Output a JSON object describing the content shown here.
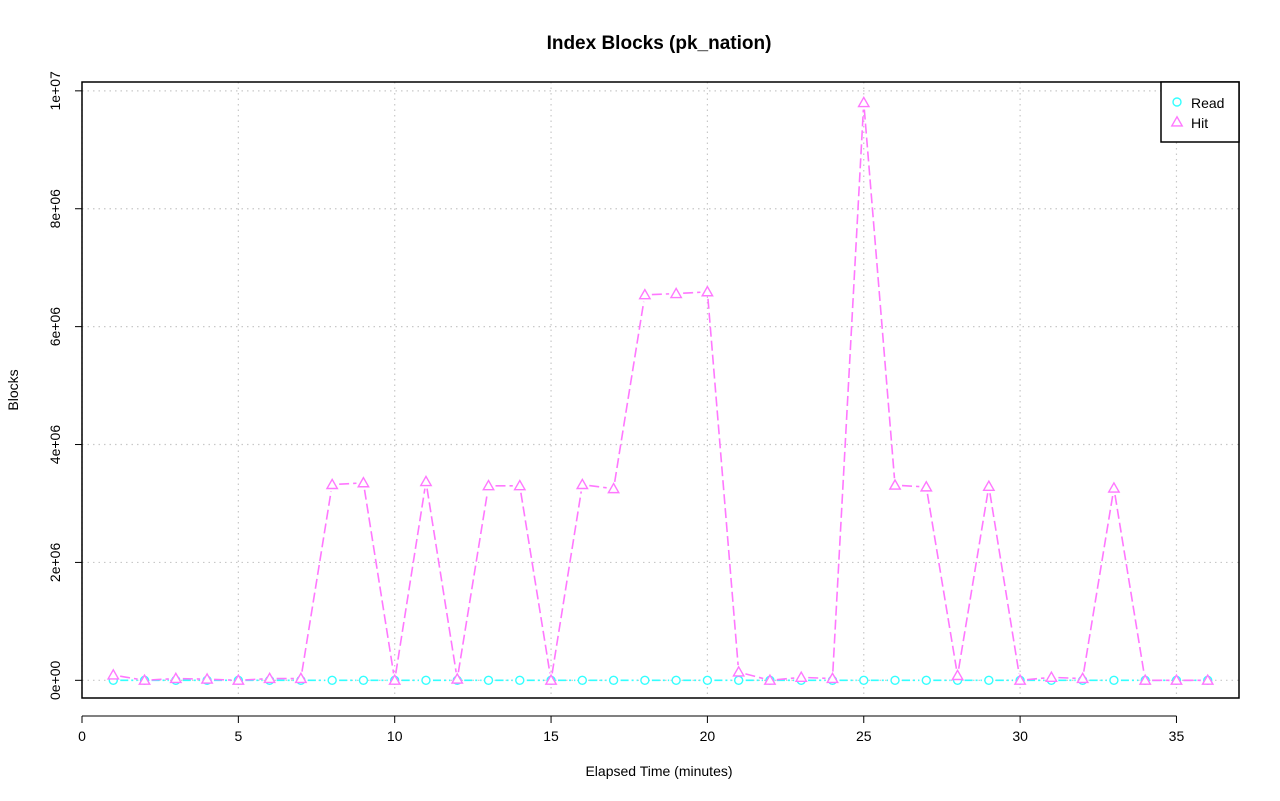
{
  "chart_data": {
    "type": "line",
    "title": "Index Blocks (pk_nation)",
    "xlabel": "Elapsed Time (minutes)",
    "ylabel": "Blocks",
    "xlim": [
      0,
      37
    ],
    "ylim": [
      -300000,
      10150000
    ],
    "x_ticks": [
      0,
      5,
      10,
      15,
      20,
      25,
      30,
      35
    ],
    "x_tick_labels": [
      "0",
      "5",
      "10",
      "15",
      "20",
      "25",
      "30",
      "35"
    ],
    "y_ticks": [
      0,
      2000000,
      4000000,
      6000000,
      8000000,
      10000000
    ],
    "y_tick_labels": [
      "0e+00",
      "2e+06",
      "4e+06",
      "6e+06",
      "8e+06",
      "1e+07"
    ],
    "grid": true,
    "legend_position": "top-right",
    "x": [
      1,
      2,
      3,
      4,
      5,
      6,
      7,
      8,
      9,
      10,
      11,
      12,
      13,
      14,
      15,
      16,
      17,
      18,
      19,
      20,
      21,
      22,
      23,
      24,
      25,
      26,
      27,
      28,
      29,
      30,
      31,
      32,
      33,
      34,
      35,
      36
    ],
    "series": [
      {
        "name": "Read",
        "color": "#33ffff",
        "marker": "circle",
        "values": [
          0,
          0,
          0,
          0,
          0,
          0,
          0,
          0,
          0,
          0,
          0,
          0,
          0,
          0,
          0,
          0,
          0,
          0,
          0,
          0,
          0,
          0,
          0,
          0,
          0,
          0,
          0,
          0,
          0,
          0,
          0,
          0,
          0,
          0,
          0,
          0
        ]
      },
      {
        "name": "Hit",
        "color": "#ff77ff",
        "marker": "triangle",
        "values": [
          90000,
          0,
          30000,
          20000,
          0,
          30000,
          30000,
          3320000,
          3350000,
          0,
          3370000,
          20000,
          3300000,
          3300000,
          0,
          3320000,
          3250000,
          6540000,
          6560000,
          6590000,
          140000,
          0,
          50000,
          30000,
          9800000,
          3310000,
          3280000,
          80000,
          3290000,
          0,
          50000,
          30000,
          3260000,
          0,
          0,
          0
        ]
      }
    ]
  }
}
